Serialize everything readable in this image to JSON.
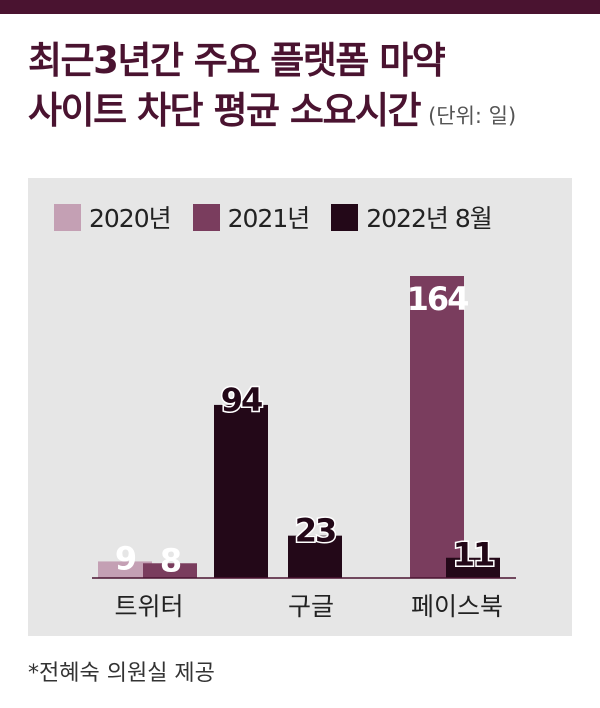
{
  "title_lines": [
    "최근3년간 주요 플랫폼 마약",
    "사이트 차단 평균 소요시간"
  ],
  "unit": "(단위: 일)",
  "footnote": "*전혜숙 의원실 제공",
  "colors": {
    "accent": "#4a1330",
    "panel": "#e6e6e6"
  },
  "chart_data": {
    "type": "bar",
    "categories": [
      "트위터",
      "구글",
      "페이스북"
    ],
    "series": [
      {
        "name": "2020년",
        "color": "#c4a0b4",
        "values": [
          9,
          null,
          null
        ]
      },
      {
        "name": "2021년",
        "color": "#7a3d5e",
        "values": [
          8,
          null,
          164
        ]
      },
      {
        "name": "2022년 8월",
        "color": "#230818",
        "values": [
          94,
          23,
          11
        ]
      }
    ],
    "data_labels": [
      {
        "series": 0,
        "category": 0,
        "text": "9"
      },
      {
        "series": 1,
        "category": 0,
        "text": "8"
      },
      {
        "series": 2,
        "category": 0,
        "text": "94"
      },
      {
        "series": 2,
        "category": 1,
        "text": "23"
      },
      {
        "series": 1,
        "category": 2,
        "text": "164"
      },
      {
        "series": 2,
        "category": 2,
        "text": "11"
      }
    ],
    "title": "최근3년간 주요 플랫폼 마약 사이트 차단 평균 소요시간",
    "ylabel": "(단위: 일)",
    "ylim": [
      0,
      164
    ],
    "legend": "top-left",
    "grid": false
  }
}
